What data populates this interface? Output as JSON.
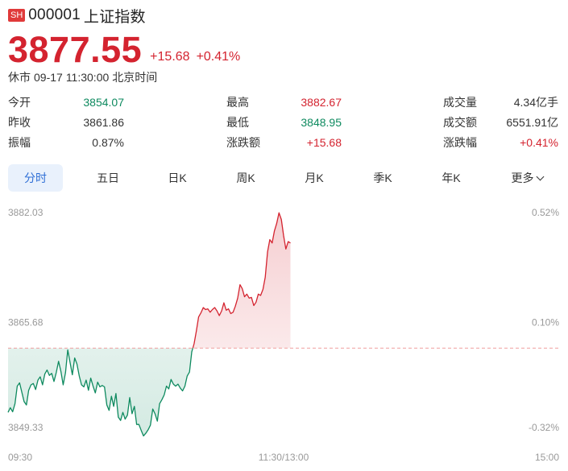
{
  "header": {
    "badge": "SH",
    "code": "000001",
    "name": "上证指数",
    "price": "3877.55",
    "change": "+15.68",
    "change_pct": "+0.41%",
    "status": "休市",
    "date": "09-17",
    "time": "11:30:00",
    "timezone": "北京时间"
  },
  "stats": [
    {
      "label": "今开",
      "value": "3854.07",
      "trend": "down"
    },
    {
      "label": "最高",
      "value": "3882.67",
      "trend": "up"
    },
    {
      "label": "成交量",
      "value": "4.34亿手",
      "trend": "neutral"
    },
    {
      "label": "昨收",
      "value": "3861.86",
      "trend": "neutral"
    },
    {
      "label": "最低",
      "value": "3848.95",
      "trend": "down"
    },
    {
      "label": "成交额",
      "value": "6551.91亿",
      "trend": "neutral"
    },
    {
      "label": "振幅",
      "value": "0.87%",
      "trend": "neutral"
    },
    {
      "label": "涨跌额",
      "value": "+15.68",
      "trend": "up"
    },
    {
      "label": "涨跌幅",
      "value": "+0.41%",
      "trend": "up"
    }
  ],
  "tabs": [
    {
      "label": "分时",
      "active": true
    },
    {
      "label": "五日",
      "active": false
    },
    {
      "label": "日K",
      "active": false
    },
    {
      "label": "周K",
      "active": false
    },
    {
      "label": "月K",
      "active": false
    },
    {
      "label": "季K",
      "active": false
    },
    {
      "label": "年K",
      "active": false
    },
    {
      "label": "更多",
      "active": false
    }
  ],
  "colors": {
    "up": "#d4232f",
    "down": "#0e8a5f",
    "accent": "#2f6fd6",
    "prev_close_line": "#f0a0a0",
    "axis_text": "#999999"
  },
  "chart_data": {
    "type": "line",
    "y_left_ticks": [
      "3882.03",
      "3865.68",
      "3849.33"
    ],
    "y_right_ticks": [
      "0.52%",
      "0.10%",
      "-0.32%"
    ],
    "x_ticks": [
      "09:30",
      "11:30/13:00",
      "15:00"
    ],
    "ylim": [
      3849.33,
      3882.03
    ],
    "prev_close": 3861.86,
    "x_range_minutes": [
      0,
      240
    ],
    "grid": false,
    "series": [
      {
        "values": [
          [
            0,
            3852.3
          ],
          [
            1,
            3853.0
          ],
          [
            2,
            3852.4
          ],
          [
            3,
            3853.6
          ],
          [
            4,
            3856.2
          ],
          [
            5,
            3856.7
          ],
          [
            6,
            3855.3
          ],
          [
            7,
            3853.9
          ],
          [
            8,
            3853.4
          ],
          [
            9,
            3855.6
          ],
          [
            10,
            3856.4
          ],
          [
            11,
            3856.6
          ],
          [
            12,
            3855.7
          ],
          [
            13,
            3857.1
          ],
          [
            14,
            3857.6
          ],
          [
            15,
            3856.4
          ],
          [
            16,
            3858.0
          ],
          [
            17,
            3858.6
          ],
          [
            18,
            3857.8
          ],
          [
            19,
            3858.1
          ],
          [
            20,
            3856.9
          ],
          [
            21,
            3858.2
          ],
          [
            22,
            3859.9
          ],
          [
            23,
            3858.4
          ],
          [
            24,
            3856.4
          ],
          [
            25,
            3858.2
          ],
          [
            26,
            3861.6
          ],
          [
            27,
            3859.7
          ],
          [
            28,
            3857.9
          ],
          [
            29,
            3860.4
          ],
          [
            30,
            3859.5
          ],
          [
            31,
            3857.7
          ],
          [
            32,
            3856.4
          ],
          [
            33,
            3856.1
          ],
          [
            34,
            3857.1
          ],
          [
            35,
            3855.6
          ],
          [
            36,
            3857.4
          ],
          [
            37,
            3856.2
          ],
          [
            38,
            3855.2
          ],
          [
            39,
            3856.8
          ],
          [
            40,
            3856.1
          ],
          [
            41,
            3856.3
          ],
          [
            42,
            3856.1
          ],
          [
            43,
            3853.4
          ],
          [
            44,
            3852.6
          ],
          [
            45,
            3854.7
          ],
          [
            46,
            3853.2
          ],
          [
            47,
            3855.1
          ],
          [
            48,
            3851.6
          ],
          [
            49,
            3851.1
          ],
          [
            50,
            3852.3
          ],
          [
            51,
            3851.3
          ],
          [
            52,
            3851.9
          ],
          [
            53,
            3854.5
          ],
          [
            54,
            3852.1
          ],
          [
            55,
            3853.2
          ],
          [
            56,
            3850.5
          ],
          [
            57,
            3850.5
          ],
          [
            58,
            3849.6
          ],
          [
            59,
            3848.8
          ],
          [
            60,
            3849.2
          ],
          [
            61,
            3849.7
          ],
          [
            62,
            3850.4
          ],
          [
            63,
            3852.8
          ],
          [
            64,
            3852.1
          ],
          [
            65,
            3851.0
          ],
          [
            66,
            3853.6
          ],
          [
            67,
            3854.2
          ],
          [
            68,
            3854.9
          ],
          [
            69,
            3856.2
          ],
          [
            70,
            3855.8
          ],
          [
            71,
            3857.2
          ],
          [
            72,
            3856.5
          ],
          [
            73,
            3856.2
          ],
          [
            74,
            3856.5
          ],
          [
            75,
            3855.9
          ],
          [
            76,
            3855.5
          ],
          [
            77,
            3856.2
          ],
          [
            78,
            3857.7
          ],
          [
            79,
            3858.3
          ],
          [
            80,
            3861.3
          ],
          [
            81,
            3862.5
          ],
          [
            82,
            3864.4
          ],
          [
            83,
            3866.5
          ],
          [
            84,
            3867.1
          ],
          [
            85,
            3867.9
          ],
          [
            86,
            3867.6
          ],
          [
            87,
            3867.7
          ],
          [
            88,
            3867.2
          ],
          [
            89,
            3867.6
          ],
          [
            90,
            3867.9
          ],
          [
            91,
            3867.4
          ],
          [
            92,
            3866.7
          ],
          [
            93,
            3867.4
          ],
          [
            94,
            3868.6
          ],
          [
            95,
            3867.5
          ],
          [
            96,
            3867.7
          ],
          [
            97,
            3867.0
          ],
          [
            98,
            3867.2
          ],
          [
            99,
            3868.1
          ],
          [
            100,
            3869.3
          ],
          [
            101,
            3871.3
          ],
          [
            102,
            3870.7
          ],
          [
            103,
            3869.5
          ],
          [
            104,
            3869.9
          ],
          [
            105,
            3869.3
          ],
          [
            106,
            3869.4
          ],
          [
            107,
            3868.2
          ],
          [
            108,
            3868.7
          ],
          [
            109,
            3869.9
          ],
          [
            110,
            3869.7
          ],
          [
            111,
            3870.6
          ],
          [
            112,
            3872.4
          ],
          [
            113,
            3876.2
          ],
          [
            114,
            3878.0
          ],
          [
            115,
            3877.5
          ],
          [
            116,
            3879.3
          ],
          [
            117,
            3880.4
          ],
          [
            118,
            3882.0
          ],
          [
            119,
            3881.0
          ],
          [
            120,
            3878.6
          ],
          [
            121,
            3876.6
          ],
          [
            122,
            3877.7
          ],
          [
            123,
            3877.5
          ]
        ]
      }
    ]
  }
}
